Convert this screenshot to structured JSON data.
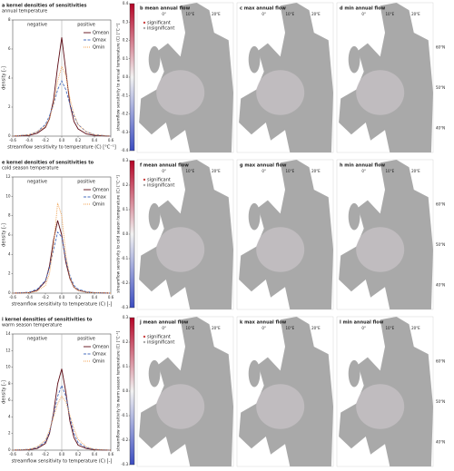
{
  "chart_data": [
    {
      "type": "line",
      "title": [
        "a kernel densities of sensitivities",
        "annual temperature"
      ],
      "annotations": [
        "negative",
        "positive"
      ],
      "xlabel": "streamflow sensitivity to temperature (C) [°C⁻¹]",
      "ylabel": "density [-]",
      "legend": "upper right",
      "x": [
        -0.6,
        -0.4,
        -0.3,
        -0.2,
        -0.15,
        -0.1,
        -0.05,
        0,
        0.05,
        0.1,
        0.15,
        0.2,
        0.3,
        0.4,
        0.6
      ],
      "xlim": [
        -0.6,
        0.6
      ],
      "xticks": [
        -0.6,
        -0.4,
        -0.2,
        {
          "value": 0,
          "label": "0.0"
        },
        0.2,
        0.4,
        0.6
      ],
      "ylim": [
        0,
        8
      ],
      "yticks": [
        0,
        2,
        4,
        6,
        8
      ],
      "series": [
        {
          "name": "Qmean",
          "color": "#5c0a14",
          "style": "solid",
          "values": [
            0,
            0.05,
            0.2,
            0.6,
            1.2,
            2.5,
            4.8,
            6.8,
            4.5,
            2.2,
            1.0,
            0.5,
            0.15,
            0.05,
            0
          ]
        },
        {
          "name": "Qmax",
          "color": "#4a6fbf",
          "style": "dashed",
          "values": [
            0,
            0.1,
            0.3,
            0.8,
            1.4,
            2.2,
            3.2,
            3.8,
            3.2,
            2.2,
            1.4,
            0.8,
            0.3,
            0.1,
            0
          ]
        },
        {
          "name": "Qmin",
          "color": "#f0a050",
          "style": "dotted",
          "values": [
            0,
            0.1,
            0.3,
            0.7,
            1.2,
            2.2,
            3.8,
            4.8,
            4.2,
            2.6,
            1.5,
            0.8,
            0.3,
            0.1,
            0
          ]
        }
      ]
    },
    {
      "type": "colorbar",
      "label": "streamflow sensitivity to annual temperature (C) [°C⁻¹]",
      "ylim": [
        -0.4,
        0.4
      ],
      "yticks": [
        -0.4,
        -0.3,
        -0.2,
        -0.1,
        {
          "value": 0,
          "label": "0.0"
        },
        0.1,
        0.2,
        0.3,
        0.4
      ],
      "colors": [
        "#3b4cc0",
        "#f2f2f2",
        "#b40426"
      ]
    },
    {
      "type": "map",
      "title": "b mean annual flow",
      "legend": [
        "significant",
        "insignificant"
      ],
      "lon_labels": [
        "0°",
        "10°E",
        "20°E"
      ]
    },
    {
      "type": "map",
      "title": "c max annual flow",
      "lon_labels": [
        "0°",
        "10°E",
        "20°E"
      ]
    },
    {
      "type": "map",
      "title": "d min annual flow",
      "lon_labels": [
        "0°",
        "10°E",
        "20°E"
      ],
      "lat_labels": [
        "60°N",
        "50°N",
        "40°N"
      ]
    },
    {
      "type": "line",
      "title": [
        "e kernel densities of sensitivities to",
        "cold season temperature"
      ],
      "annotations": [
        "negative",
        "positive"
      ],
      "xlabel": "streamflow sensitivity to temperature (C) [-]",
      "ylabel": "density [-]",
      "legend": "upper right",
      "x": [
        -0.6,
        -0.4,
        -0.3,
        -0.2,
        -0.15,
        -0.1,
        -0.05,
        0,
        0.05,
        0.1,
        0.15,
        0.2,
        0.3,
        0.4,
        0.6
      ],
      "xlim": [
        -0.6,
        0.6
      ],
      "xticks": [
        -0.6,
        -0.4,
        -0.2,
        {
          "value": 0,
          "label": "0.0"
        },
        0.2,
        0.4,
        0.6
      ],
      "ylim": [
        0,
        12
      ],
      "yticks": [
        0,
        2,
        4,
        6,
        8,
        10,
        12
      ],
      "series": [
        {
          "name": "Qmean",
          "color": "#5c0a14",
          "style": "solid",
          "values": [
            0,
            0.05,
            0.3,
            1.2,
            2.8,
            5.5,
            7.5,
            6.0,
            3.2,
            1.5,
            0.6,
            0.3,
            0.1,
            0.05,
            0
          ]
        },
        {
          "name": "Qmax",
          "color": "#4a6fbf",
          "style": "dashed",
          "values": [
            0,
            0.1,
            0.4,
            1.3,
            2.6,
            4.5,
            6.3,
            5.8,
            3.5,
            1.8,
            0.8,
            0.4,
            0.15,
            0.05,
            0
          ]
        },
        {
          "name": "Qmin",
          "color": "#f0a050",
          "style": "dotted",
          "values": [
            0,
            0.05,
            0.2,
            0.8,
            2.0,
            5.0,
            9.3,
            8.0,
            4.0,
            1.6,
            0.6,
            0.3,
            0.1,
            0.05,
            0
          ]
        }
      ]
    },
    {
      "type": "colorbar",
      "label": "streamflow sensitivity to cold season temperature (C) [°C⁻¹]",
      "ylim": [
        -0.3,
        0.3
      ],
      "yticks": [
        -0.3,
        -0.2,
        -0.1,
        {
          "value": 0,
          "label": "0.0"
        },
        0.1,
        0.2,
        0.3
      ],
      "colors": [
        "#3b4cc0",
        "#f2f2f2",
        "#b40426"
      ]
    },
    {
      "type": "map",
      "title": "f mean annual flow",
      "legend": [
        "significant",
        "insignificant"
      ],
      "lon_labels": [
        "0°",
        "10°E",
        "20°E"
      ]
    },
    {
      "type": "map",
      "title": "g max annual flow",
      "lon_labels": [
        "0°",
        "10°E",
        "20°E"
      ]
    },
    {
      "type": "map",
      "title": "h min annual flow",
      "lon_labels": [
        "0°",
        "10°E",
        "20°E"
      ],
      "lat_labels": [
        "60°N",
        "50°N",
        "40°N"
      ]
    },
    {
      "type": "line",
      "title": [
        "i kernel densities of sensitivities to",
        "warm season temperature"
      ],
      "annotations": [
        "negative",
        "positive"
      ],
      "xlabel": "streamflow sensitivity to temperature (C) [-]",
      "ylabel": "density [-]",
      "legend": "upper right",
      "x": [
        -0.6,
        -0.4,
        -0.3,
        -0.2,
        -0.15,
        -0.1,
        -0.05,
        0,
        0.05,
        0.1,
        0.15,
        0.2,
        0.3,
        0.4,
        0.6
      ],
      "xlim": [
        -0.6,
        0.6
      ],
      "xticks": [
        -0.6,
        -0.4,
        -0.2,
        {
          "value": 0,
          "label": "0.0"
        },
        0.2,
        0.4,
        0.6
      ],
      "ylim": [
        0,
        14
      ],
      "yticks": [
        0,
        2,
        4,
        6,
        8,
        10,
        12,
        14
      ],
      "series": [
        {
          "name": "Qmean",
          "color": "#5c0a14",
          "style": "solid",
          "values": [
            0,
            0.05,
            0.2,
            0.8,
            2.0,
            4.5,
            8.0,
            9.8,
            7.0,
            3.5,
            1.5,
            0.6,
            0.2,
            0.05,
            0
          ]
        },
        {
          "name": "Qmax",
          "color": "#4a6fbf",
          "style": "dashed",
          "values": [
            0,
            0.1,
            0.3,
            1.0,
            2.2,
            4.2,
            6.5,
            7.8,
            6.5,
            4.0,
            2.0,
            0.9,
            0.3,
            0.1,
            0
          ]
        },
        {
          "name": "Qmin",
          "color": "#f0a050",
          "style": "dotted",
          "values": [
            0,
            0.1,
            0.4,
            1.2,
            2.4,
            4.0,
            5.6,
            6.5,
            5.8,
            4.2,
            2.6,
            1.3,
            0.4,
            0.1,
            0
          ]
        }
      ]
    },
    {
      "type": "colorbar",
      "label": "streamflow sensitivity to warm season temperature (C) [°C⁻¹]",
      "ylim": [
        -0.3,
        0.3
      ],
      "yticks": [
        -0.3,
        -0.2,
        -0.1,
        {
          "value": 0,
          "label": "0.0"
        },
        0.1,
        0.2,
        0.3
      ],
      "colors": [
        "#3b4cc0",
        "#f2f2f2",
        "#b40426"
      ]
    },
    {
      "type": "map",
      "title": "j mean annual flow",
      "legend": [
        "significant",
        "insignificant"
      ],
      "lon_labels": [
        "0°",
        "10°E",
        "20°E"
      ]
    },
    {
      "type": "map",
      "title": "k max annual flow",
      "lon_labels": [
        "0°",
        "10°E",
        "20°E"
      ]
    },
    {
      "type": "map",
      "title": "l min annual flow",
      "lon_labels": [
        "0°",
        "10°E",
        "20°E"
      ],
      "lat_labels": [
        "60°N",
        "50°N",
        "40°N"
      ]
    }
  ]
}
